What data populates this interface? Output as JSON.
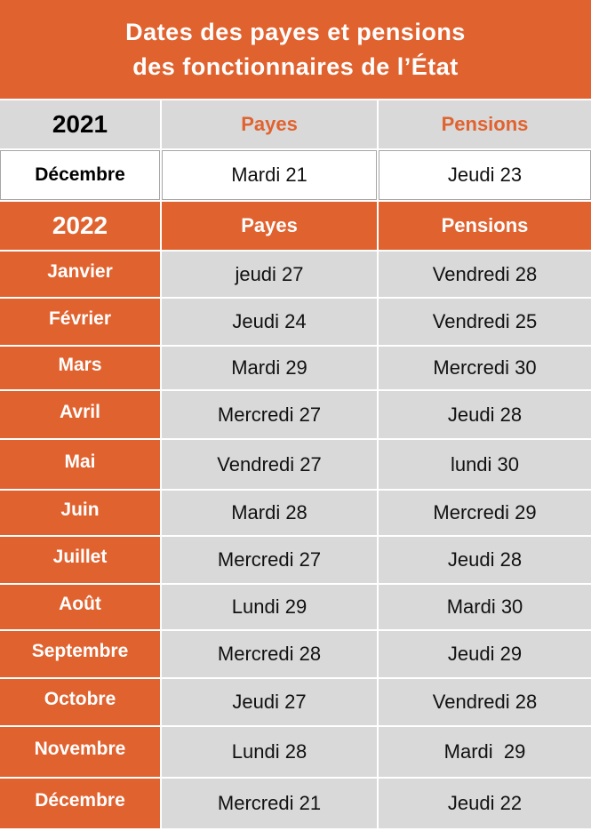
{
  "header": {
    "title": [
      "Dates des payes et pensions",
      "des fonctionnaires de l’État"
    ]
  },
  "table": {
    "sections": [
      {
        "year": "2021",
        "headers": [
          "Payes",
          "Pensions"
        ],
        "rows": [
          [
            "Décembre",
            "Mardi 21",
            "Jeudi 23"
          ]
        ]
      },
      {
        "year": "2022",
        "headers": [
          "Payes",
          "Pensions"
        ],
        "rows": [
          [
            "Janvier",
            "jeudi 27",
            "Vendredi 28"
          ],
          [
            "Février",
            "Jeudi 24",
            "Vendredi 25"
          ],
          [
            "Mars",
            "Mardi 29",
            "Mercredi 30"
          ],
          [
            "Avril",
            "Mercredi 27",
            "Jeudi 28"
          ],
          [
            "Mai",
            "Vendredi 27",
            "lundi 30"
          ],
          [
            "Juin",
            "Mardi 28",
            "Mercredi 29"
          ],
          [
            "Juillet",
            "Mercredi 27",
            "Jeudi 28"
          ],
          [
            "Août",
            "Lundi 29",
            "Mardi 30"
          ],
          [
            "Septembre",
            "Mercredi 28",
            "Jeudi 29"
          ],
          [
            "Octobre",
            "Jeudi 27",
            "Vendredi 28"
          ],
          [
            "Novembre",
            "Lundi 28",
            "Mardi  29"
          ],
          [
            "Décembre",
            "Mercredi 21",
            "Jeudi 22"
          ]
        ]
      }
    ]
  }
}
